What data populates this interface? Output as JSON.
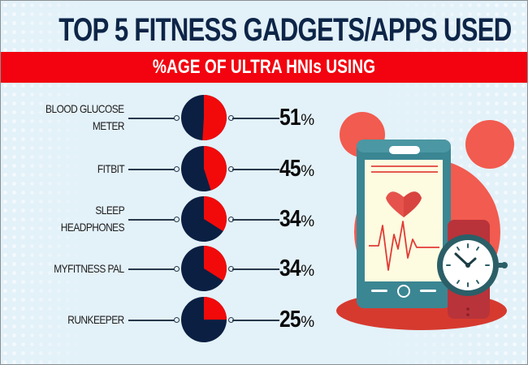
{
  "header": {
    "title": "TOP 5 FITNESS GADGETS/APPS USED",
    "subtitle": "%AGE OF ULTRA HNIs USING"
  },
  "colors": {
    "background": "#e3f1f9",
    "banner_red": "#f2030f",
    "pie_red": "#f20a0a",
    "pie_navy": "#0b1f42",
    "title_navy": "#0d2547",
    "illustration_teal": "#3b8693",
    "illustration_coral": "#f25b4f"
  },
  "items": [
    {
      "label_lines": [
        "BLOOD GLUCOSE",
        "METER"
      ],
      "value": "51",
      "unit": "%"
    },
    {
      "label_lines": [
        "FITBIT"
      ],
      "value": "45",
      "unit": "%"
    },
    {
      "label_lines": [
        "SLEEP",
        "HEADPHONES"
      ],
      "value": "34",
      "unit": "%"
    },
    {
      "label_lines": [
        "MYFITNESS PAL"
      ],
      "value": "34",
      "unit": "%"
    },
    {
      "label_lines": [
        "RUNKEEPER"
      ],
      "value": "25",
      "unit": "%"
    }
  ],
  "illustration": {
    "icons": [
      "smartphone-icon",
      "heart-icon",
      "heartbeat-line-icon",
      "wristwatch-icon"
    ]
  },
  "chart_data": {
    "type": "pie",
    "title": "TOP 5 FITNESS GADGETS/APPS USED",
    "subtitle": "%AGE OF ULTRA HNIs USING",
    "categories": [
      "Blood Glucose Meter",
      "Fitbit",
      "Sleep Headphones",
      "MyFitness Pal",
      "Runkeeper"
    ],
    "values": [
      51,
      45,
      34,
      34,
      25
    ],
    "unit": "%",
    "note": "Each item shown as a small pie: red slice = % of ultra HNIs using, navy = remainder"
  }
}
